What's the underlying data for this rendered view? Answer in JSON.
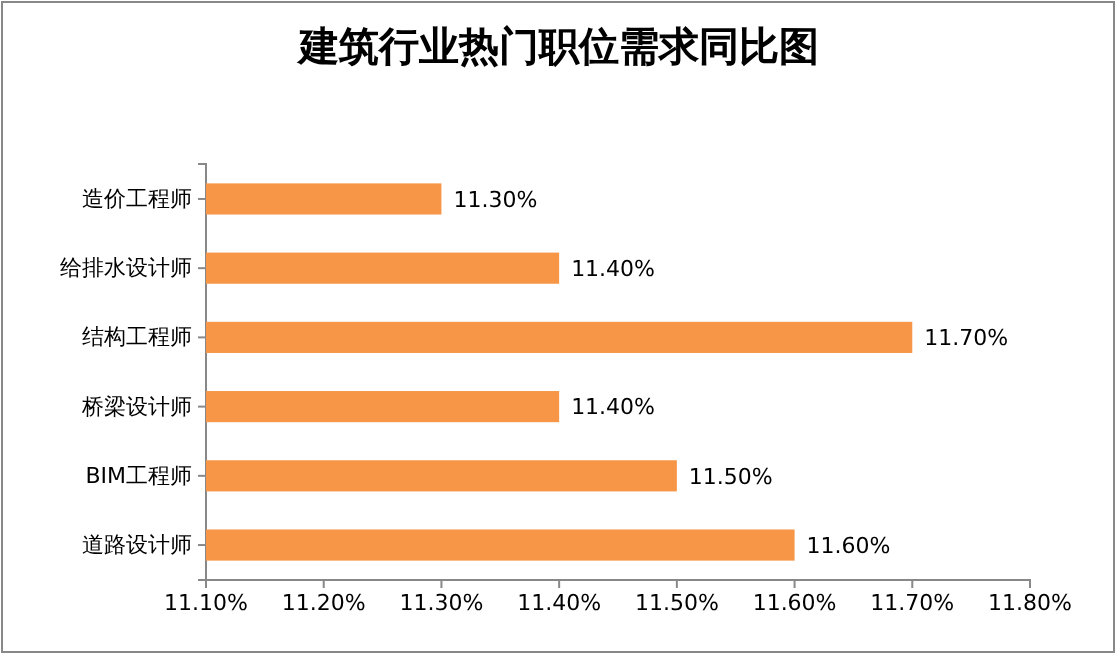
{
  "chart_data": {
    "type": "bar",
    "orientation": "horizontal",
    "title": "建筑行业热门职位需求同比图",
    "categories": [
      "造价工程师",
      "给排水设计师",
      "结构工程师",
      "桥梁设计师",
      "BIM工程师",
      "道路设计师"
    ],
    "values": [
      11.3,
      11.4,
      11.7,
      11.4,
      11.5,
      11.6
    ],
    "value_labels": [
      "11.30%",
      "11.40%",
      "11.70%",
      "11.40%",
      "11.50%",
      "11.60%"
    ],
    "color": "#f79646",
    "xlim": [
      11.1,
      11.8
    ],
    "xticks": [
      {
        "value": 11.1,
        "label": "11.10%"
      },
      {
        "value": 11.2,
        "label": "11.20%"
      },
      {
        "value": 11.3,
        "label": "11.30%"
      },
      {
        "value": 11.4,
        "label": "11.40%"
      },
      {
        "value": 11.5,
        "label": "11.50%"
      },
      {
        "value": 11.6,
        "label": "11.60%"
      },
      {
        "value": 11.7,
        "label": "11.70%"
      },
      {
        "value": 11.8,
        "label": "11.80%"
      }
    ]
  }
}
